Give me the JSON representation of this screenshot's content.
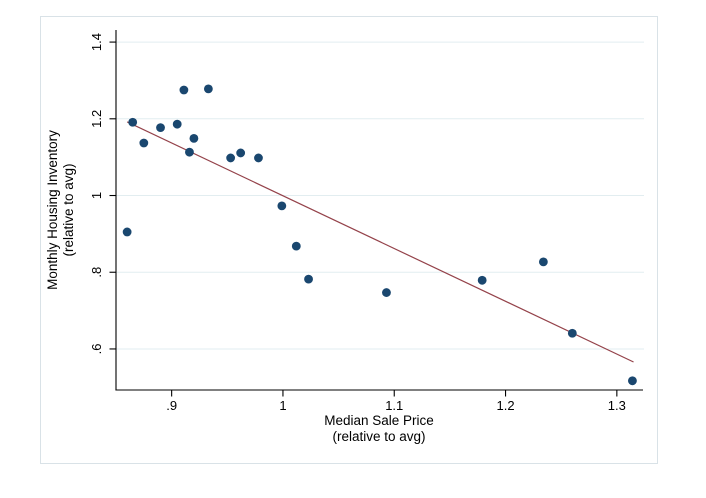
{
  "figure": {
    "background": "#ffffff",
    "frame_border_color": "#d9e2e7",
    "axis_color": "#000000",
    "gridline_color": "#e2edf0"
  },
  "chart_data": {
    "type": "scatter",
    "title": "",
    "xlabel": "Median Sale Price",
    "xlabel_line2": "(relative to avg)",
    "ylabel": "Monthly Housing Inventory",
    "ylabel_line2": "(relative to avg)",
    "xlim": [
      0.85,
      1.3235
    ],
    "ylim": [
      0.493,
      1.4315
    ],
    "grid": "horizontal-only",
    "legend": "none",
    "x_ticks": {
      "values": [
        0.9,
        1.0,
        1.1,
        1.2,
        1.3
      ],
      "labels": [
        ".9",
        "1",
        "1.1",
        "1.2",
        "1.3"
      ]
    },
    "y_ticks": {
      "values": [
        0.6,
        0.8,
        1.0,
        1.2,
        1.4
      ],
      "labels": [
        ".6",
        ".8",
        "1",
        "1.2",
        "1.4"
      ]
    },
    "marker_color": "#1a476f",
    "marker_radius": 4.4,
    "points": [
      [
        0.86,
        0.905
      ],
      [
        0.865,
        1.191
      ],
      [
        0.875,
        1.137
      ],
      [
        0.89,
        1.177
      ],
      [
        0.905,
        1.186
      ],
      [
        0.911,
        1.275
      ],
      [
        0.916,
        1.113
      ],
      [
        0.92,
        1.149
      ],
      [
        0.933,
        1.278
      ],
      [
        0.953,
        1.098
      ],
      [
        0.962,
        1.111
      ],
      [
        0.978,
        1.098
      ],
      [
        0.999,
        0.973
      ],
      [
        1.012,
        0.868
      ],
      [
        1.023,
        0.782
      ],
      [
        1.093,
        0.747
      ],
      [
        1.179,
        0.779
      ],
      [
        1.234,
        0.827
      ],
      [
        1.26,
        0.641
      ],
      [
        1.314,
        0.517
      ]
    ],
    "fit_line": {
      "x1": 0.86,
      "y1": 1.192,
      "x2": 1.315,
      "y2": 0.566,
      "color": "#94424a"
    }
  }
}
